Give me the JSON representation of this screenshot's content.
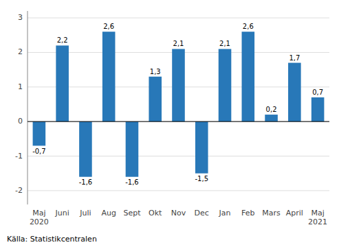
{
  "chart_data": {
    "type": "bar",
    "categories": [
      "Maj\n2020",
      "Juni",
      "Juli",
      "Aug",
      "Sept",
      "Okt",
      "Nov",
      "Dec",
      "Jan",
      "Feb",
      "Mars",
      "April",
      "Maj\n2021"
    ],
    "values": [
      -0.7,
      2.2,
      -1.6,
      2.6,
      -1.6,
      1.3,
      2.1,
      -1.5,
      2.1,
      2.6,
      0.2,
      1.7,
      0.7
    ],
    "value_labels": [
      "-0,7",
      "2,2",
      "-1,6",
      "2,6",
      "-1,6",
      "1,3",
      "2,1",
      "-1,5",
      "2,1",
      "2,6",
      "0,2",
      "1,7",
      "0,7"
    ],
    "data_labels": true,
    "color": "#2878b8",
    "ylim": [
      -2.4,
      3.2
    ],
    "yticks": [
      -2,
      -1,
      0,
      1,
      2,
      3
    ],
    "grid": true,
    "annotations": [
      "Källa: Statistikcentralen"
    ]
  }
}
